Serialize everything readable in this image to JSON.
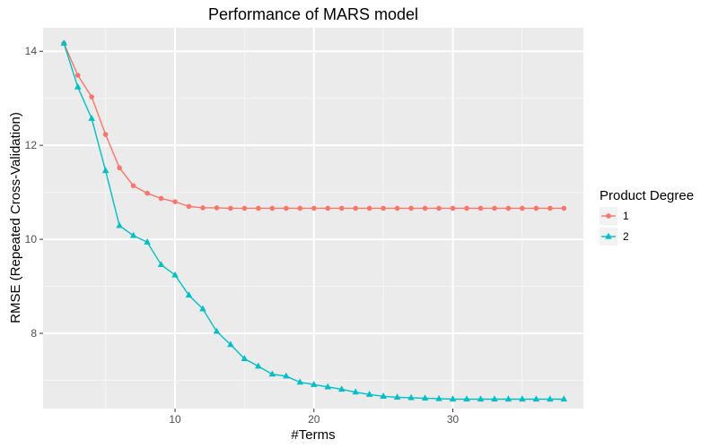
{
  "chart_data": {
    "type": "line",
    "title": "Performance of MARS model",
    "xlabel": "#Terms",
    "ylabel": "RMSE (Repeated Cross-Validation)",
    "xlim": [
      0.5,
      39.4
    ],
    "ylim": [
      6.4,
      14.5
    ],
    "xticks": [
      10,
      20,
      30
    ],
    "yticks": [
      8,
      10,
      12,
      14
    ],
    "grid": true,
    "legend": {
      "title": "Product Degree",
      "placement": "right"
    },
    "series": [
      {
        "name": "1",
        "color": "#F8766D",
        "marker": "circle",
        "x": [
          2,
          3,
          4,
          5,
          6,
          7,
          8,
          9,
          10,
          11,
          12,
          13,
          14,
          15,
          16,
          17,
          18,
          19,
          20,
          21,
          22,
          23,
          24,
          25,
          26,
          27,
          28,
          29,
          30,
          31,
          32,
          33,
          34,
          35,
          36,
          37,
          38
        ],
        "values": [
          14.17,
          13.49,
          13.03,
          12.23,
          11.52,
          11.14,
          10.98,
          10.87,
          10.8,
          10.7,
          10.67,
          10.67,
          10.66,
          10.66,
          10.66,
          10.66,
          10.66,
          10.66,
          10.66,
          10.66,
          10.66,
          10.66,
          10.66,
          10.66,
          10.66,
          10.66,
          10.66,
          10.66,
          10.66,
          10.66,
          10.66,
          10.66,
          10.66,
          10.66,
          10.66,
          10.66,
          10.66
        ]
      },
      {
        "name": "2",
        "color": "#00BFC4",
        "marker": "triangle",
        "x": [
          2,
          3,
          4,
          5,
          6,
          7,
          8,
          9,
          10,
          11,
          12,
          13,
          14,
          15,
          16,
          17,
          18,
          19,
          20,
          21,
          22,
          23,
          24,
          25,
          26,
          27,
          28,
          29,
          30,
          31,
          32,
          33,
          34,
          35,
          36,
          37,
          38
        ],
        "values": [
          14.17,
          13.24,
          12.57,
          11.46,
          10.29,
          10.08,
          9.94,
          9.46,
          9.24,
          8.81,
          8.52,
          8.04,
          7.76,
          7.46,
          7.3,
          7.13,
          7.09,
          6.96,
          6.91,
          6.86,
          6.81,
          6.75,
          6.7,
          6.66,
          6.64,
          6.63,
          6.62,
          6.61,
          6.6,
          6.6,
          6.6,
          6.6,
          6.6,
          6.6,
          6.6,
          6.6,
          6.6
        ]
      }
    ]
  }
}
